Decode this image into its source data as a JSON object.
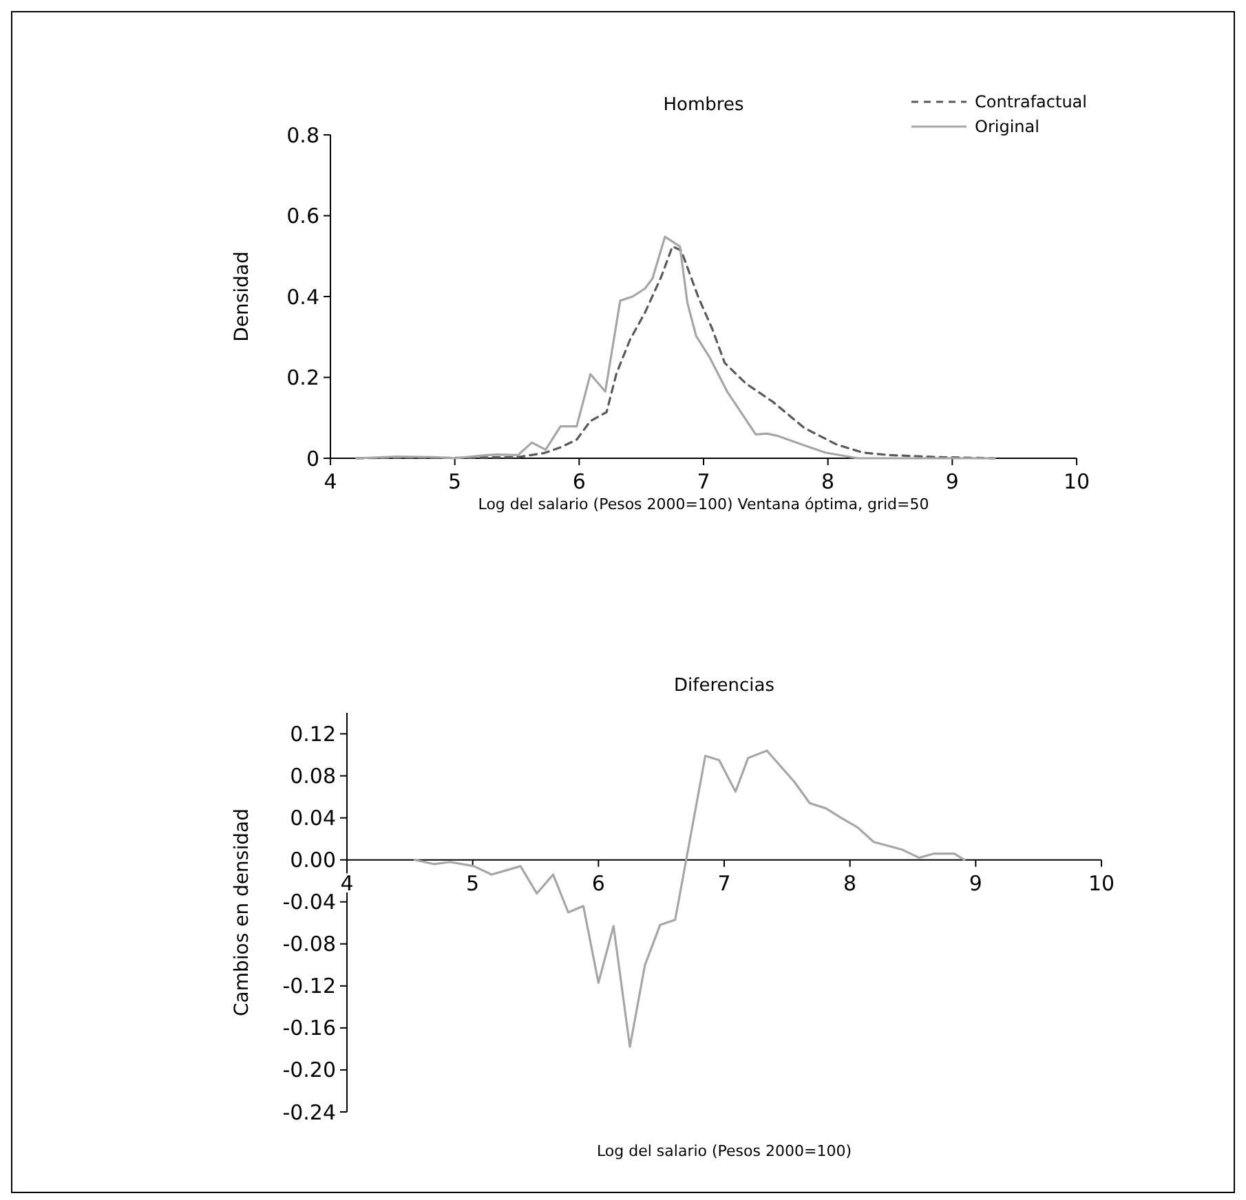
{
  "chart_data": [
    {
      "type": "line",
      "title": "Hombres",
      "xlabel": "Log del salario (Pesos 2000=100) Ventana óptima, grid=50",
      "ylabel": "Densidad",
      "xlim": [
        4,
        10
      ],
      "xticks": [
        4,
        5,
        6,
        7,
        8,
        9,
        10
      ],
      "ylim": [
        0,
        0.8
      ],
      "yticks": [
        {
          "value": 0,
          "label": "0"
        },
        0.2,
        0.4,
        0.6,
        0.8
      ],
      "legend": "top right",
      "grid": false,
      "series": [
        {
          "name": "Contrafactual",
          "color": "#595959",
          "line_style": "dashed",
          "x": [
            4.21,
            4.6,
            5.0,
            5.51,
            5.72,
            5.85,
            5.98,
            6.09,
            6.22,
            6.3,
            6.41,
            6.53,
            6.66,
            6.75,
            6.82,
            6.96,
            7.07,
            7.17,
            7.34,
            7.56,
            7.81,
            8.07,
            8.28,
            8.49,
            8.88,
            9.34
          ],
          "values": [
            0,
            0.002,
            0.001,
            0.003,
            0.013,
            0.027,
            0.046,
            0.092,
            0.114,
            0.21,
            0.294,
            0.361,
            0.449,
            0.524,
            0.514,
            0.397,
            0.32,
            0.236,
            0.185,
            0.139,
            0.075,
            0.034,
            0.014,
            0.008,
            0.003,
            0
          ]
        },
        {
          "name": "Original",
          "color": "#a6a6a6",
          "line_style": "solid",
          "x": [
            4.21,
            4.53,
            4.83,
            5.0,
            5.26,
            5.34,
            5.51,
            5.62,
            5.73,
            5.85,
            5.98,
            6.09,
            6.21,
            6.33,
            6.43,
            6.53,
            6.59,
            6.69,
            6.81,
            6.87,
            6.94,
            7.05,
            7.19,
            7.42,
            7.51,
            7.6,
            7.81,
            7.98,
            8.24,
            8.66,
            9.34
          ],
          "values": [
            0,
            0.004,
            0.003,
            0,
            0.008,
            0.009,
            0.008,
            0.039,
            0.021,
            0.079,
            0.079,
            0.208,
            0.165,
            0.39,
            0.4,
            0.42,
            0.445,
            0.548,
            0.524,
            0.385,
            0.303,
            0.249,
            0.165,
            0.059,
            0.061,
            0.055,
            0.032,
            0.014,
            0,
            0,
            0
          ]
        }
      ]
    },
    {
      "type": "line",
      "title": "Diferencias",
      "xlabel": "Log del salario (Pesos 2000=100)",
      "ylabel": "Cambios en densidad",
      "xlim": [
        4,
        10
      ],
      "xticks": [
        4,
        5,
        6,
        7,
        8,
        9,
        10
      ],
      "ylim": [
        -0.24,
        0.14
      ],
      "yticks": [
        {
          "value": 0.12,
          "label": "0.12"
        },
        {
          "value": 0.08,
          "label": "0.08"
        },
        {
          "value": 0.04,
          "label": "0.04"
        },
        {
          "value": 0,
          "label": "0.00"
        },
        {
          "value": -0.04,
          "label": "-0.04"
        },
        {
          "value": -0.08,
          "label": "-0.08"
        },
        {
          "value": -0.12,
          "label": "-0.12"
        },
        {
          "value": -0.16,
          "label": "-0.16"
        },
        {
          "value": -0.2,
          "label": "-0.20"
        },
        {
          "value": -0.24,
          "label": "-0.24"
        }
      ],
      "legend": false,
      "grid": false,
      "series": [
        {
          "color": "#a6a6a6",
          "line_style": "solid",
          "x": [
            4.54,
            4.69,
            4.82,
            5.01,
            5.15,
            5.38,
            5.51,
            5.64,
            5.76,
            5.88,
            6.0,
            6.12,
            6.25,
            6.37,
            6.49,
            6.61,
            6.85,
            6.96,
            7.09,
            7.19,
            7.34,
            7.56,
            7.68,
            7.81,
            7.93,
            8.06,
            8.19,
            8.41,
            8.55,
            8.67,
            8.83,
            8.91
          ],
          "values": [
            0,
            -0.004,
            -0.002,
            -0.006,
            -0.014,
            -0.006,
            -0.032,
            -0.014,
            -0.05,
            -0.044,
            -0.117,
            -0.063,
            -0.178,
            -0.1,
            -0.062,
            -0.057,
            0.099,
            0.095,
            0.065,
            0.097,
            0.104,
            0.074,
            0.054,
            0.049,
            0.04,
            0.031,
            0.017,
            0.01,
            0.002,
            0.006,
            0.006,
            0
          ]
        }
      ]
    }
  ]
}
